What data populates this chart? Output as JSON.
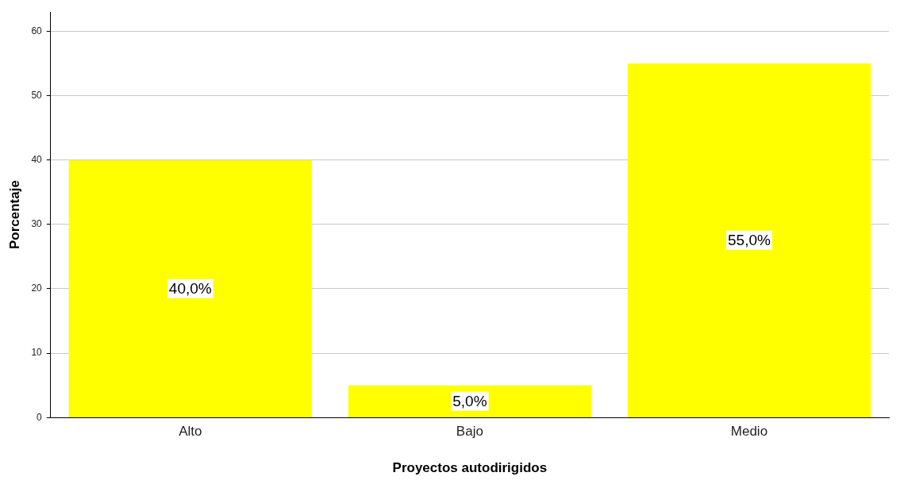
{
  "chart_data": {
    "type": "bar",
    "xlabel": "Proyectos autodirigidos",
    "ylabel": "Porcentaje",
    "categories": [
      "Alto",
      "Bajo",
      "Medio"
    ],
    "values": [
      40.0,
      5.0,
      55.0
    ],
    "value_labels": [
      "40,0%",
      "5,0%",
      "55,0%"
    ],
    "color": "#ffff00",
    "ylim": [
      0,
      63
    ],
    "yticks": [
      0,
      10,
      20,
      30,
      40,
      50,
      60
    ],
    "grid": "y",
    "legend": false
  }
}
